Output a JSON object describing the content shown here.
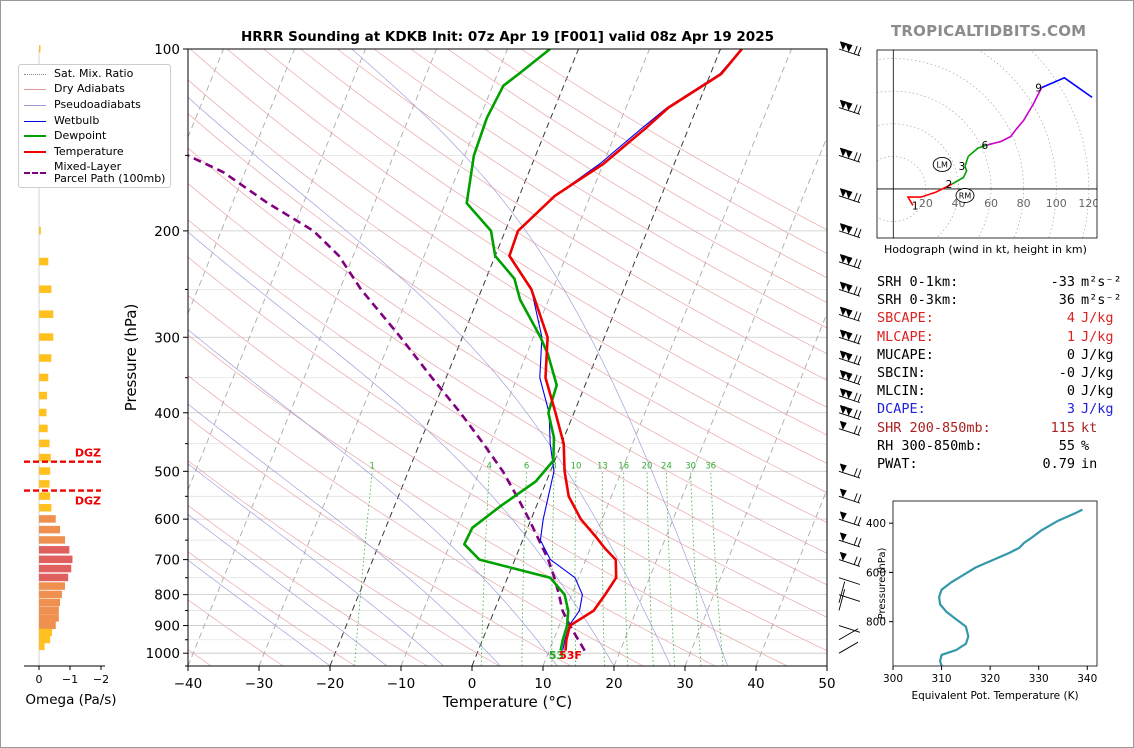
{
  "title": "HRRR Sounding at KDKB Init: 07z Apr 19 [F001] valid 08z Apr 19 2025",
  "brand": "TROPICALTIDBITS.COM",
  "legend": {
    "items": [
      {
        "label": "Sat. Mix. Ratio",
        "color": "#888888",
        "style": "dotted"
      },
      {
        "label": "Dry Adiabats",
        "color": "#e09a9a",
        "style": "solid"
      },
      {
        "label": "Pseudoadiabats",
        "color": "#9a9ad8",
        "style": "solid"
      },
      {
        "label": "Wetbulb",
        "color": "#0000ee",
        "style": "solid"
      },
      {
        "label": "Dewpoint",
        "color": "#00a000",
        "style": "solid"
      },
      {
        "label": "Temperature",
        "color": "#ee0000",
        "style": "solid"
      },
      {
        "label": "Mixed-Layer\nParcel Path (100mb)",
        "color": "#800080",
        "style": "dashed"
      }
    ]
  },
  "chart_data": [
    {
      "type": "line",
      "title": "HRRR Sounding at KDKB Init: 07z Apr 19 [F001] valid 08z Apr 19 2025",
      "xlabel": "Temperature (°C)",
      "ylabel": "Pressure (hPa)",
      "xlim": [
        -40,
        50
      ],
      "ylim": [
        1050,
        100
      ],
      "y_scale": "log",
      "grid": true,
      "xticks": [
        "−40",
        "−30",
        "−20",
        "−10",
        "0",
        "10",
        "20",
        "30",
        "40",
        "50"
      ],
      "yticks": [
        "100",
        "200",
        "300",
        "400",
        "500",
        "600",
        "700",
        "800",
        "900",
        "1000"
      ],
      "mixing_ratio_labels": [
        "1",
        "4",
        "6",
        "8",
        "10",
        "13",
        "16",
        "20",
        "24",
        "30",
        "36"
      ],
      "surface_label": {
        "temperature": "53F",
        "dewpoint": "53"
      },
      "series": [
        {
          "name": "Temperature",
          "color": "#ee0000",
          "points": [
            [
              12.3,
              990
            ],
            [
              11.8,
              950
            ],
            [
              11.5,
              900
            ],
            [
              12.5,
              880
            ],
            [
              14,
              850
            ],
            [
              14.7,
              800
            ],
            [
              15.3,
              750
            ],
            [
              14.2,
              700
            ],
            [
              12,
              670
            ],
            [
              10,
              640
            ],
            [
              7,
              600
            ],
            [
              4,
              550
            ],
            [
              2,
              500
            ],
            [
              0.3,
              450
            ],
            [
              -2.6,
              400
            ],
            [
              -6,
              350
            ],
            [
              -8,
              300
            ],
            [
              -13,
              250
            ],
            [
              -18,
              220
            ],
            [
              -18.2,
              200
            ],
            [
              -15,
              175
            ],
            [
              -10,
              155
            ],
            [
              -6,
              135
            ],
            [
              -4,
              125
            ],
            [
              1.5,
              110
            ],
            [
              3,
              100
            ]
          ]
        },
        {
          "name": "Dewpoint",
          "color": "#00a000",
          "points": [
            [
              11.6,
              990
            ],
            [
              11.3,
              950
            ],
            [
              11.1,
              900
            ],
            [
              10.4,
              850
            ],
            [
              9,
              800
            ],
            [
              6,
              750
            ],
            [
              -5,
              700
            ],
            [
              -8,
              660
            ],
            [
              -7.8,
              620
            ],
            [
              -5,
              570
            ],
            [
              -1.5,
              520
            ],
            [
              -0.2,
              480
            ],
            [
              -1.4,
              440
            ],
            [
              -3.6,
              400
            ],
            [
              -4,
              360
            ],
            [
              -7,
              320
            ],
            [
              -9,
              300
            ],
            [
              -14,
              260
            ],
            [
              -16,
              240
            ],
            [
              -20,
              220
            ],
            [
              -22,
              200
            ],
            [
              -27,
              180
            ],
            [
              -28.7,
              150
            ],
            [
              -29,
              130
            ],
            [
              -28.5,
              115
            ],
            [
              -27,
              110
            ],
            [
              -24,
              100
            ]
          ]
        },
        {
          "name": "Wetbulb",
          "color": "#0000ee",
          "points": [
            [
              11.9,
              990
            ],
            [
              11.6,
              950
            ],
            [
              11.4,
              900
            ],
            [
              12,
              850
            ],
            [
              11.5,
              800
            ],
            [
              9.5,
              750
            ],
            [
              5,
              700
            ],
            [
              2.5,
              650
            ],
            [
              1.7,
              600
            ],
            [
              0.5,
              500
            ],
            [
              -1.6,
              450
            ],
            [
              -3.5,
              400
            ],
            [
              -6.8,
              350
            ],
            [
              -8.8,
              300
            ],
            [
              -13,
              250
            ],
            [
              -18,
              220
            ],
            [
              -18.2,
              200
            ],
            [
              -15,
              175
            ],
            [
              -10.5,
              155
            ],
            [
              -6.5,
              135
            ],
            [
              -4.2,
              125
            ],
            [
              1.3,
              110
            ],
            [
              3,
              100
            ]
          ]
        },
        {
          "name": "Mixed-Layer\nParcel Path (100mb)",
          "color": "#800080",
          "dashed": true,
          "points": [
            [
              15,
              990
            ],
            [
              11.5,
              900
            ],
            [
              9.6,
              850
            ],
            [
              8.2,
              800
            ],
            [
              6.6,
              750
            ],
            [
              4.7,
              700
            ],
            [
              2.3,
              650
            ],
            [
              -0.3,
              600
            ],
            [
              -3.3,
              550
            ],
            [
              -6.7,
              500
            ],
            [
              -11,
              450
            ],
            [
              -16,
              400
            ],
            [
              -22,
              350
            ],
            [
              -28.7,
              300
            ],
            [
              -37,
              250
            ],
            [
              -42,
              220
            ],
            [
              -47,
              200
            ],
            [
              -55,
              180
            ],
            [
              -63,
              160
            ],
            [
              -69,
              150
            ]
          ]
        }
      ]
    },
    {
      "type": "bar",
      "xlabel": "Omega (Pa/s)",
      "xticks": [
        "0",
        "−1",
        "−2"
      ],
      "xlim": [
        0,
        -2
      ],
      "dgz_label": "DGZ",
      "dgz_levels_hpa": [
        482,
        538
      ],
      "levels_hpa": [
        100,
        125,
        160,
        200,
        225,
        250,
        275,
        300,
        325,
        350,
        375,
        400,
        425,
        450,
        475,
        500,
        525,
        550,
        575,
        600,
        625,
        650,
        675,
        700,
        725,
        750,
        775,
        800,
        825,
        850,
        875,
        900,
        925,
        950,
        975
      ],
      "values": [
        -0.02,
        -0.03,
        -0.03,
        -0.03,
        -0.15,
        -0.2,
        -0.23,
        -0.23,
        -0.2,
        -0.15,
        -0.13,
        -0.12,
        -0.14,
        -0.17,
        -0.19,
        -0.18,
        -0.17,
        -0.18,
        -0.2,
        -0.27,
        -0.34,
        -0.42,
        -0.49,
        -0.54,
        -0.52,
        -0.47,
        -0.42,
        -0.37,
        -0.34,
        -0.32,
        -0.32,
        -0.27,
        -0.21,
        -0.18,
        -0.09
      ]
    },
    {
      "type": "line",
      "title": "Hodograph (wind in kt, height in km)",
      "xlim": [
        -10,
        125
      ],
      "ylim": [
        -30,
        85
      ],
      "tick_labels": [
        "20",
        "40",
        "60",
        "80",
        "100",
        "120"
      ],
      "height_labels": [
        "1",
        "2",
        "3",
        "6",
        "9"
      ],
      "markers": [
        {
          "label": "LM",
          "u": 30,
          "v": 15
        },
        {
          "label": "RM",
          "u": 44,
          "v": -4
        }
      ],
      "series": [
        {
          "name": "0-1 km",
          "color": "#ff0000",
          "points": [
            [
              12,
              -10
            ],
            [
              9,
              -5
            ],
            [
              17,
              -5
            ],
            [
              26,
              -2
            ],
            [
              36,
              3
            ]
          ]
        },
        {
          "name": "1-3 km",
          "color": "#00a000",
          "points": [
            [
              36,
              3
            ],
            [
              43,
              7
            ],
            [
              45,
              11
            ],
            [
              44,
              14
            ]
          ]
        },
        {
          "name": "3-6 km",
          "color": "#00a000",
          "points": [
            [
              44,
              14
            ],
            [
              46,
              20
            ],
            [
              52,
              25
            ],
            [
              58,
              27
            ]
          ]
        },
        {
          "name": "6-9 km",
          "color": "#cc00cc",
          "points": [
            [
              58,
              27
            ],
            [
              66,
              29
            ],
            [
              72,
              32
            ],
            [
              75,
              36
            ],
            [
              80,
              42
            ],
            [
              86,
              52
            ],
            [
              91,
              62
            ]
          ]
        },
        {
          "name": "9+ km",
          "color": "#0000ff",
          "points": [
            [
              91,
              62
            ],
            [
              105,
              68
            ],
            [
              122,
              56
            ]
          ]
        }
      ]
    },
    {
      "type": "line",
      "xlabel": "Equivalent Pot. Temperature (K)",
      "ylabel": "Pressure (hPa)",
      "xlim": [
        300,
        342
      ],
      "ylim": [
        980,
        310
      ],
      "xticks": [
        "300",
        "310",
        "320",
        "330",
        "340"
      ],
      "yticks": [
        "400",
        "600",
        "800"
      ],
      "series": [
        {
          "name": "Theta-E",
          "color": "#3399aa",
          "points": [
            [
              310,
              980
            ],
            [
              309.7,
              960
            ],
            [
              310,
              935
            ],
            [
              313,
              915
            ],
            [
              315,
              890
            ],
            [
              315.5,
              860
            ],
            [
              315,
              820
            ],
            [
              313,
              790
            ],
            [
              311,
              760
            ],
            [
              309.7,
              730
            ],
            [
              309.5,
              700
            ],
            [
              310,
              670
            ],
            [
              312,
              640
            ],
            [
              314.5,
              610
            ],
            [
              317,
              580
            ],
            [
              320.5,
              550
            ],
            [
              324,
              520
            ],
            [
              326,
              500
            ],
            [
              327,
              480
            ],
            [
              328.5,
              460
            ],
            [
              330.5,
              430
            ],
            [
              334,
              390
            ],
            [
              337.5,
              360
            ],
            [
              339,
              345
            ]
          ]
        }
      ]
    }
  ],
  "stats": [
    {
      "label": "SRH 0-1km:",
      "value": "-33",
      "unit": "m²s⁻²",
      "color": "#000000"
    },
    {
      "label": "SRH 0-3km:",
      "value": "36",
      "unit": "m²s⁻²",
      "color": "#000000"
    },
    {
      "label": "SBCAPE:",
      "value": "4",
      "unit": "J/kg",
      "color": "#dd2222"
    },
    {
      "label": "MLCAPE:",
      "value": "1",
      "unit": "J/kg",
      "color": "#dd2222"
    },
    {
      "label": "MUCAPE:",
      "value": "0",
      "unit": "J/kg",
      "color": "#000000"
    },
    {
      "label": "SBCIN:",
      "value": "-0",
      "unit": "J/kg",
      "color": "#000000"
    },
    {
      "label": "MLCIN:",
      "value": "0",
      "unit": "J/kg",
      "color": "#000000"
    },
    {
      "label": "DCAPE:",
      "value": "3",
      "unit": "J/kg",
      "color": "#2222dd"
    },
    {
      "label": "SHR 200-850mb:",
      "value": "115",
      "unit": "kt",
      "color": "#aa2222"
    },
    {
      "label": "RH 300-850mb:",
      "value": "55",
      "unit": "%",
      "color": "#000000"
    },
    {
      "label": "PWAT:",
      "value": "0.79",
      "unit": "in",
      "color": "#000000"
    }
  ]
}
